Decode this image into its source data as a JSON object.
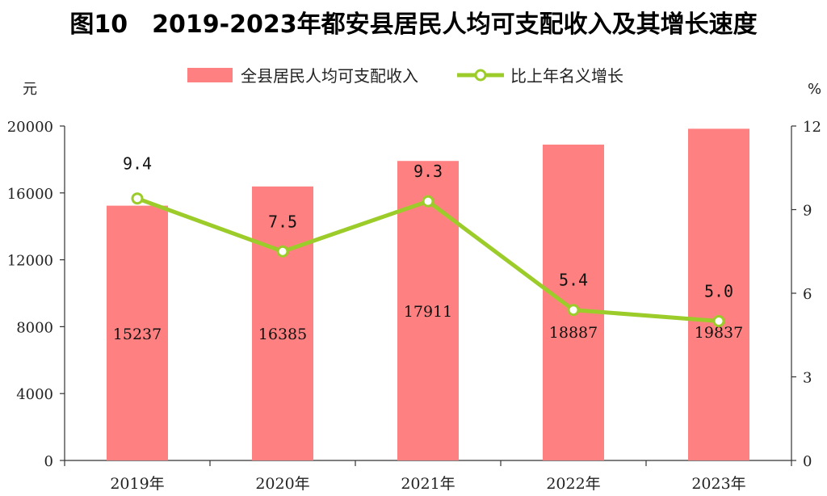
{
  "title": "图10　2019-2023年都安县居民人均可支配收入及其增长速度",
  "chart_data": {
    "type": "bar+line",
    "categories": [
      "2019年",
      "2020年",
      "2021年",
      "2022年",
      "2023年"
    ],
    "series": [
      {
        "name": "全县居民人均可支配收入",
        "type": "bar",
        "axis": "left",
        "color": "#ff8080",
        "values": [
          15237,
          16385,
          17911,
          18887,
          19837
        ]
      },
      {
        "name": "比上年名义增长",
        "type": "line",
        "axis": "right",
        "color": "#9ccc2a",
        "values": [
          9.4,
          7.5,
          9.3,
          5.4,
          5.0
        ]
      }
    ],
    "y_left": {
      "unit": "元",
      "min": 0,
      "max": 20000,
      "ticks": [
        0,
        4000,
        8000,
        12000,
        16000,
        20000
      ]
    },
    "y_right": {
      "unit": "%",
      "min": 0,
      "max": 12,
      "ticks": [
        0,
        3,
        6,
        9,
        12
      ]
    },
    "bar_labels": [
      "15237",
      "16385",
      "17911",
      "18887",
      "19837"
    ],
    "point_labels": [
      "9.4",
      "7.5",
      "9.3",
      "5.4",
      "5.0"
    ],
    "legend": "top-center",
    "grid": false
  }
}
